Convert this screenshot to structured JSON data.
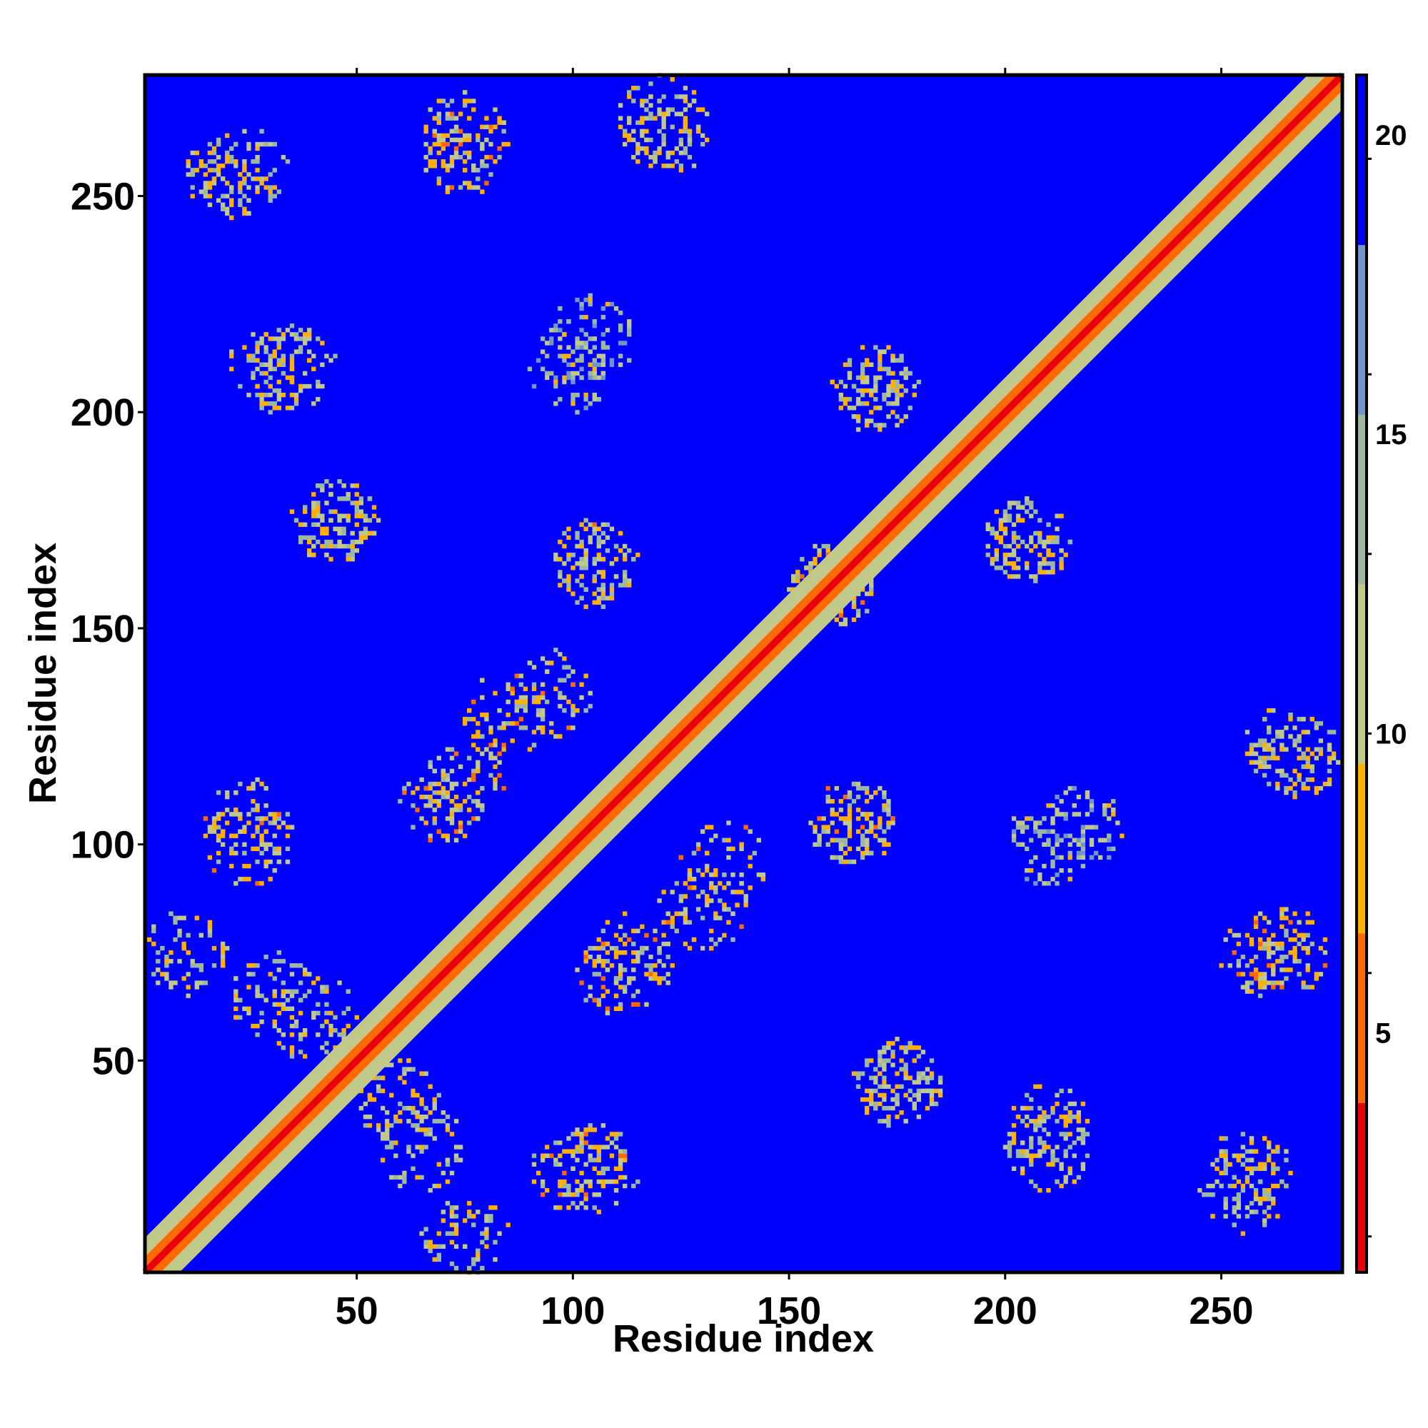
{
  "chart_data": {
    "type": "heatmap",
    "title": "",
    "xlabel": "Residue index",
    "ylabel": "Residue index",
    "xlim": [
      1,
      278
    ],
    "ylim": [
      1,
      278
    ],
    "x_ticks": [
      50,
      100,
      150,
      200,
      250
    ],
    "y_ticks": [
      50,
      100,
      150,
      200,
      250
    ],
    "colorbar": {
      "ticks": [
        5,
        10,
        15,
        20
      ],
      "range": [
        1,
        21
      ],
      "colors": [
        "#e8000b",
        "#ff6a00",
        "#ffb000",
        "#c0c88a",
        "#9eb8a0",
        "#6f95c9",
        "#0000ff"
      ]
    },
    "diagonal_band": {
      "core_value": 2,
      "near_value": 6,
      "halo_value": 11,
      "halo_width_residues": 8
    },
    "background_value": 21,
    "contact_blobs": [
      {
        "x": 24,
        "y": 256,
        "value": 11
      },
      {
        "x": 75,
        "y": 260,
        "value": 10
      },
      {
        "x": 120,
        "y": 268,
        "value": 11
      },
      {
        "x": 30,
        "y": 210,
        "value": 11
      },
      {
        "x": 104,
        "y": 217,
        "value": 13
      },
      {
        "x": 170,
        "y": 205,
        "value": 11
      },
      {
        "x": 45,
        "y": 175,
        "value": 11
      },
      {
        "x": 105,
        "y": 165,
        "value": 10
      },
      {
        "x": 160,
        "y": 160,
        "value": 10
      },
      {
        "x": 205,
        "y": 170,
        "value": 11
      },
      {
        "x": 25,
        "y": 105,
        "value": 10
      },
      {
        "x": 75,
        "y": 115,
        "value": 10
      },
      {
        "x": 95,
        "y": 135,
        "value": 10
      },
      {
        "x": 165,
        "y": 105,
        "value": 11
      },
      {
        "x": 210,
        "y": 100,
        "value": 13
      },
      {
        "x": 265,
        "y": 122,
        "value": 11
      },
      {
        "x": 265,
        "y": 75,
        "value": 10
      },
      {
        "x": 30,
        "y": 65,
        "value": 11
      },
      {
        "x": 130,
        "y": 85,
        "value": 10
      },
      {
        "x": 110,
        "y": 70,
        "value": 10
      },
      {
        "x": 60,
        "y": 40,
        "value": 11
      },
      {
        "x": 100,
        "y": 25,
        "value": 10
      },
      {
        "x": 75,
        "y": 10,
        "value": 11
      },
      {
        "x": 175,
        "y": 45,
        "value": 11
      },
      {
        "x": 210,
        "y": 35,
        "value": 11
      },
      {
        "x": 255,
        "y": 20,
        "value": 11
      }
    ]
  }
}
